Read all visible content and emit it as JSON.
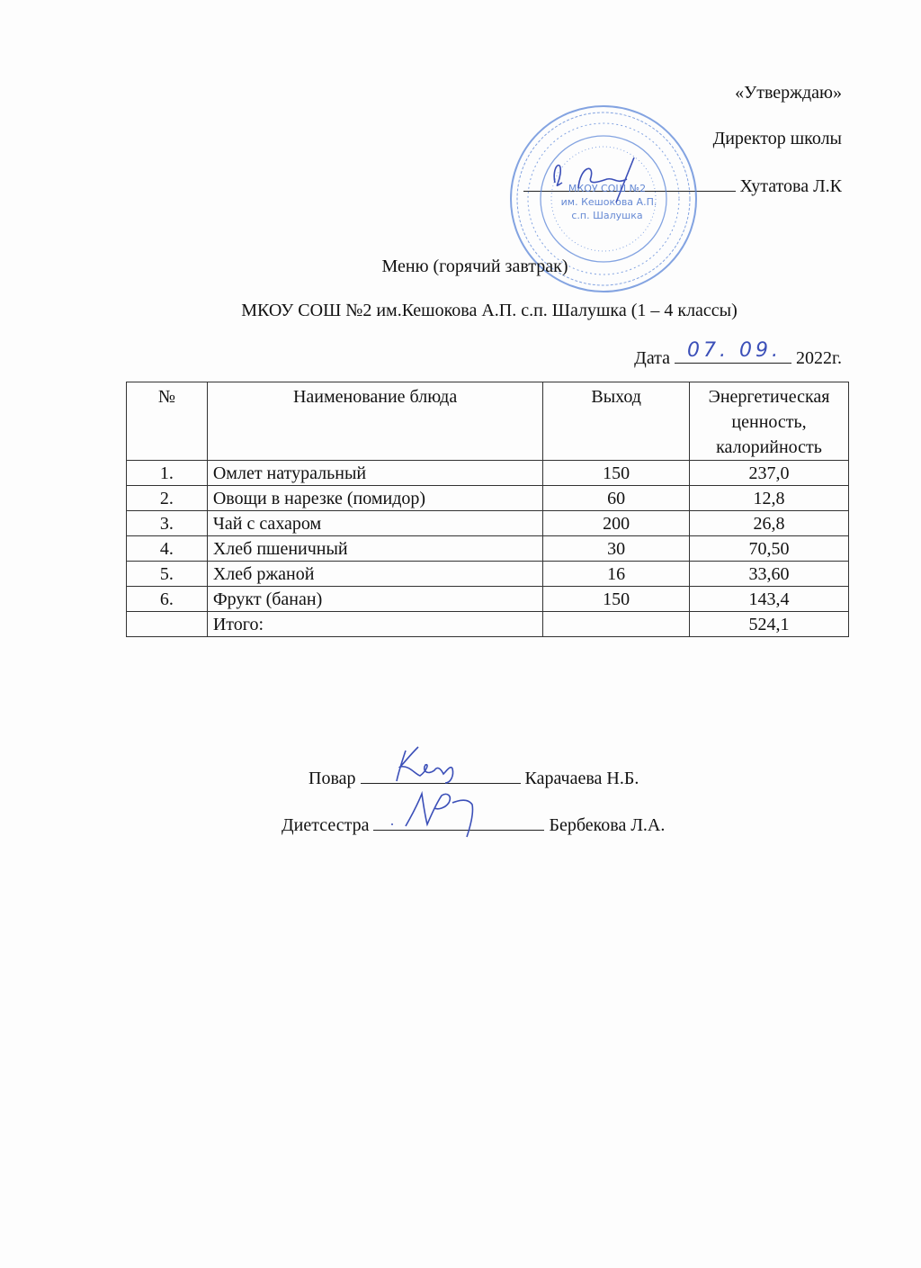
{
  "approval": {
    "approve": "«Утверждаю»",
    "position": "Директор школы",
    "name": "Хутатова Л.К"
  },
  "stamp": {
    "text": "МКОУ СОШ №2 им. Кешокова А.П. с.п. Шалушка",
    "color": "#3b6fd0"
  },
  "title": "Меню (горячий завтрак)",
  "school": "МКОУ СОШ №2 им.Кешокова А.П. с.п. Шалушка (1 – 4 классы)",
  "date": {
    "label": "Дата",
    "handwritten": "07. 09.",
    "year": "2022г."
  },
  "table": {
    "headers": [
      "№",
      "Наименование блюда",
      "Выход",
      "Энергетическая ценность, калорийность"
    ],
    "rows": [
      {
        "num": "1.",
        "name": "Омлет натуральный",
        "yield": "150",
        "kcal": "237,0"
      },
      {
        "num": "2.",
        "name": "Овощи в нарезке (помидор)",
        "yield": "60",
        "kcal": "12,8"
      },
      {
        "num": "3.",
        "name": "Чай с сахаром",
        "yield": "200",
        "kcal": "26,8"
      },
      {
        "num": "4.",
        "name": "Хлеб пшеничный",
        "yield": "30",
        "kcal": "70,50"
      },
      {
        "num": "5.",
        "name": "Хлеб ржаной",
        "yield": "16",
        "kcal": "33,60"
      },
      {
        "num": "6.",
        "name": "Фрукт (банан)",
        "yield": "150",
        "kcal": "143,4"
      }
    ],
    "total": {
      "label": "Итого:",
      "kcal": "524,1"
    }
  },
  "signatures": [
    {
      "role": "Повар",
      "name": "Карачаева Н.Б."
    },
    {
      "role": "Диетсестра",
      "name": "Бербекова Л.А."
    }
  ],
  "ink_color": "#3b4fb8"
}
